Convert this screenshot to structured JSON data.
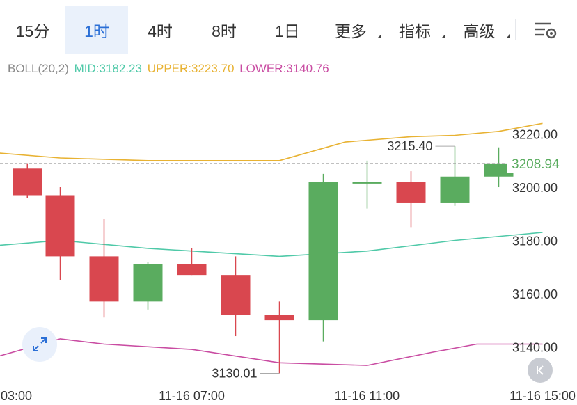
{
  "tabs": [
    {
      "label": "15分",
      "active": false,
      "dropdown": false
    },
    {
      "label": "1时",
      "active": true,
      "dropdown": false
    },
    {
      "label": "4时",
      "active": false,
      "dropdown": false
    },
    {
      "label": "8时",
      "active": false,
      "dropdown": false
    },
    {
      "label": "1日",
      "active": false,
      "dropdown": false
    },
    {
      "label": "更多",
      "active": false,
      "dropdown": true
    },
    {
      "label": "指标",
      "active": false,
      "dropdown": true
    },
    {
      "label": "高级",
      "active": false,
      "dropdown": true
    }
  ],
  "legend": {
    "name": "BOLL(20,2)",
    "mid": "MID:3182.23",
    "upper": "UPPER:3223.70",
    "lower": "LOWER:3140.76"
  },
  "colors": {
    "up": "#5aac5f",
    "down": "#d9474f",
    "mid": "#4fc9a8",
    "upper": "#e8b232",
    "lower": "#c94ca2",
    "accent": "#2b6fd6",
    "legend_name": "#888888"
  },
  "icons": {
    "settings": "settings-sliders-icon",
    "expand": "expand-arrows-icon",
    "back": "back-to-latest-icon"
  },
  "chart_data": {
    "type": "candlestick",
    "y_range": [
      3127,
      3239
    ],
    "y_ticks": [
      {
        "value": 3220,
        "label": "3220.00"
      },
      {
        "value": 3200,
        "label": "3200.00"
      },
      {
        "value": 3180,
        "label": "3180.00"
      },
      {
        "value": 3160,
        "label": "3160.00"
      },
      {
        "value": 3140,
        "label": "3140.00"
      }
    ],
    "x_labels": [
      {
        "slot": -0.5,
        "label": "03:00"
      },
      {
        "slot": 3.5,
        "label": "11-16 07:00"
      },
      {
        "slot": 7.5,
        "label": "11-16 11:00"
      },
      {
        "slot": 11.5,
        "label": "11-16 15:00"
      }
    ],
    "candles": [
      {
        "slot": -0.25,
        "open": 3207,
        "close": 3197,
        "high": 3209,
        "low": 3196
      },
      {
        "slot": 0.5,
        "open": 3197,
        "close": 3174,
        "high": 3200,
        "low": 3165
      },
      {
        "slot": 1.5,
        "open": 3174,
        "close": 3157,
        "high": 3188,
        "low": 3151
      },
      {
        "slot": 2.5,
        "open": 3157,
        "close": 3171,
        "high": 3172,
        "low": 3154
      },
      {
        "slot": 3.5,
        "open": 3171,
        "close": 3167,
        "high": 3177,
        "low": 3167
      },
      {
        "slot": 4.5,
        "open": 3167,
        "close": 3152,
        "high": 3174,
        "low": 3144
      },
      {
        "slot": 5.5,
        "open": 3152,
        "close": 3150,
        "high": 3157,
        "low": 3130.01
      },
      {
        "slot": 6.5,
        "open": 3150,
        "close": 3202,
        "high": 3205,
        "low": 3142
      },
      {
        "slot": 7.5,
        "open": 3202,
        "close": 3202,
        "high": 3210,
        "low": 3192
      },
      {
        "slot": 8.5,
        "open": 3202,
        "close": 3194,
        "high": 3206,
        "low": 3185
      },
      {
        "slot": 9.5,
        "open": 3194,
        "close": 3204,
        "high": 3215.4,
        "low": 3193
      },
      {
        "slot": 10.5,
        "open": 3204,
        "close": 3208.94,
        "high": 3215,
        "low": 3200
      }
    ],
    "boll": {
      "upper": [
        [
          -1,
          3213
        ],
        [
          0.5,
          3211
        ],
        [
          2.5,
          3210
        ],
        [
          4.5,
          3210
        ],
        [
          5.5,
          3210
        ],
        [
          7,
          3217
        ],
        [
          8.5,
          3219
        ],
        [
          9.5,
          3219.5
        ],
        [
          10.5,
          3221
        ],
        [
          11.5,
          3224
        ]
      ],
      "mid": [
        [
          -1,
          3178
        ],
        [
          0.5,
          3180
        ],
        [
          2.5,
          3177
        ],
        [
          4.5,
          3175
        ],
        [
          5.5,
          3174
        ],
        [
          7.5,
          3176
        ],
        [
          9.5,
          3180
        ],
        [
          11.5,
          3183
        ]
      ],
      "lower": [
        [
          -1,
          3136
        ],
        [
          0.5,
          3143
        ],
        [
          1.5,
          3141
        ],
        [
          3.5,
          3139
        ],
        [
          5.5,
          3134
        ],
        [
          7.5,
          3133
        ],
        [
          9,
          3138
        ],
        [
          10,
          3141
        ],
        [
          11.5,
          3141
        ]
      ]
    },
    "last_price": 3208.94,
    "annotations": [
      {
        "slot": 9.5,
        "value": 3215.4,
        "label": "3215.40",
        "side": "left"
      },
      {
        "slot": 5.5,
        "value": 3130.01,
        "label": "3130.01",
        "side": "left"
      }
    ]
  }
}
